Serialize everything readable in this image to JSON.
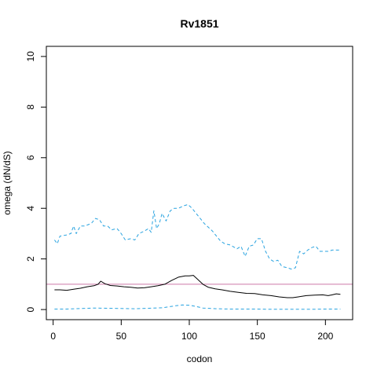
{
  "chart_data": {
    "type": "line",
    "title": "Rv1851",
    "xlabel": "codon",
    "ylabel": "omega (dN/dS)",
    "xlim": [
      -5,
      220
    ],
    "ylim": [
      -0.4,
      10.4
    ],
    "x_ticks": [
      0,
      50,
      100,
      150,
      200
    ],
    "y_ticks": [
      0,
      2,
      4,
      6,
      8,
      10
    ],
    "reference_line": {
      "y": 1,
      "color": "#cc79a7"
    },
    "grid": false,
    "legend": "none",
    "series": [
      {
        "style": "solid",
        "color": "#000000",
        "x": [
          1,
          5,
          10,
          15,
          20,
          25,
          30,
          33,
          35,
          38,
          42,
          47,
          52,
          57,
          62,
          67,
          72,
          77,
          82,
          87,
          92,
          97,
          100,
          103,
          106,
          110,
          114,
          119,
          124,
          130,
          136,
          142,
          148,
          154,
          160,
          166,
          172,
          176,
          180,
          186,
          192,
          198,
          202,
          205,
          208,
          211
        ],
        "values": [
          0.78,
          0.78,
          0.76,
          0.8,
          0.84,
          0.9,
          0.94,
          1.0,
          1.12,
          1.02,
          0.95,
          0.93,
          0.9,
          0.88,
          0.85,
          0.86,
          0.9,
          0.94,
          1.0,
          1.15,
          1.28,
          1.33,
          1.33,
          1.35,
          1.2,
          1.0,
          0.88,
          0.82,
          0.78,
          0.72,
          0.68,
          0.64,
          0.63,
          0.58,
          0.55,
          0.5,
          0.47,
          0.47,
          0.5,
          0.55,
          0.57,
          0.58,
          0.55,
          0.58,
          0.62,
          0.6
        ]
      },
      {
        "style": "dashed",
        "color": "#29a3e0",
        "x": [
          1,
          3,
          5,
          10,
          13,
          15,
          17,
          20,
          23,
          28,
          31,
          34,
          37,
          40,
          43,
          47,
          50,
          53,
          57,
          60,
          63,
          67,
          70,
          72,
          74,
          76,
          78,
          80,
          83,
          86,
          89,
          92,
          96,
          99,
          102,
          105,
          108,
          111,
          114,
          117,
          120,
          123,
          126,
          130,
          135,
          138,
          141,
          144,
          147,
          150,
          153,
          156,
          159,
          162,
          165,
          168,
          172,
          175,
          178,
          181,
          184,
          187,
          190,
          193,
          196,
          199,
          202,
          205,
          208,
          211
        ],
        "values": [
          2.75,
          2.6,
          2.9,
          2.95,
          3.0,
          3.3,
          3.0,
          3.3,
          3.3,
          3.4,
          3.6,
          3.55,
          3.3,
          3.3,
          3.15,
          3.2,
          3.0,
          2.75,
          2.8,
          2.75,
          3.0,
          3.1,
          3.2,
          3.05,
          3.9,
          3.2,
          3.4,
          3.8,
          3.5,
          3.9,
          4.0,
          4.0,
          4.1,
          4.15,
          4.0,
          3.8,
          3.6,
          3.4,
          3.25,
          3.1,
          2.9,
          2.7,
          2.6,
          2.55,
          2.4,
          2.5,
          2.1,
          2.5,
          2.55,
          2.8,
          2.8,
          2.3,
          2.0,
          1.9,
          1.95,
          1.7,
          1.65,
          1.6,
          1.65,
          2.3,
          2.2,
          2.35,
          2.45,
          2.5,
          2.3,
          2.3,
          2.3,
          2.35,
          2.35,
          2.35
        ]
      },
      {
        "style": "dashed",
        "color": "#29a3e0",
        "x": [
          1,
          10,
          20,
          30,
          40,
          50,
          60,
          70,
          80,
          90,
          95,
          100,
          105,
          110,
          120,
          130,
          140,
          150,
          160,
          170,
          180,
          190,
          200,
          211
        ],
        "values": [
          0.02,
          0.02,
          0.04,
          0.06,
          0.05,
          0.04,
          0.03,
          0.05,
          0.07,
          0.15,
          0.18,
          0.17,
          0.12,
          0.06,
          0.03,
          0.02,
          0.02,
          0.02,
          0.01,
          0.01,
          0.01,
          0.01,
          0.02,
          0.02
        ]
      }
    ]
  }
}
